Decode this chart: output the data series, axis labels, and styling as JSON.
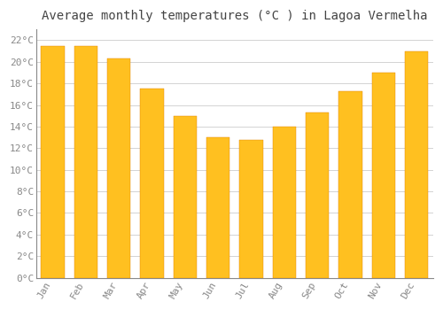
{
  "title": "Average monthly temperatures (°C ) in Lagoa Vermelha",
  "months": [
    "Jan",
    "Feb",
    "Mar",
    "Apr",
    "May",
    "Jun",
    "Jul",
    "Aug",
    "Sep",
    "Oct",
    "Nov",
    "Dec"
  ],
  "values": [
    21.5,
    21.5,
    20.3,
    17.5,
    15.0,
    13.0,
    12.8,
    14.0,
    15.3,
    17.3,
    19.0,
    21.0
  ],
  "bar_color_top": "#FFC020",
  "bar_color_bottom": "#FFA000",
  "bar_edge_color": "#E08000",
  "ylim": [
    0,
    23
  ],
  "background_color": "#FFFFFF",
  "plot_bg_color": "#FFFFFF",
  "grid_color": "#CCCCCC",
  "title_fontsize": 10,
  "tick_fontsize": 8,
  "tick_color": "#888888",
  "spine_color": "#888888",
  "font_family": "monospace"
}
